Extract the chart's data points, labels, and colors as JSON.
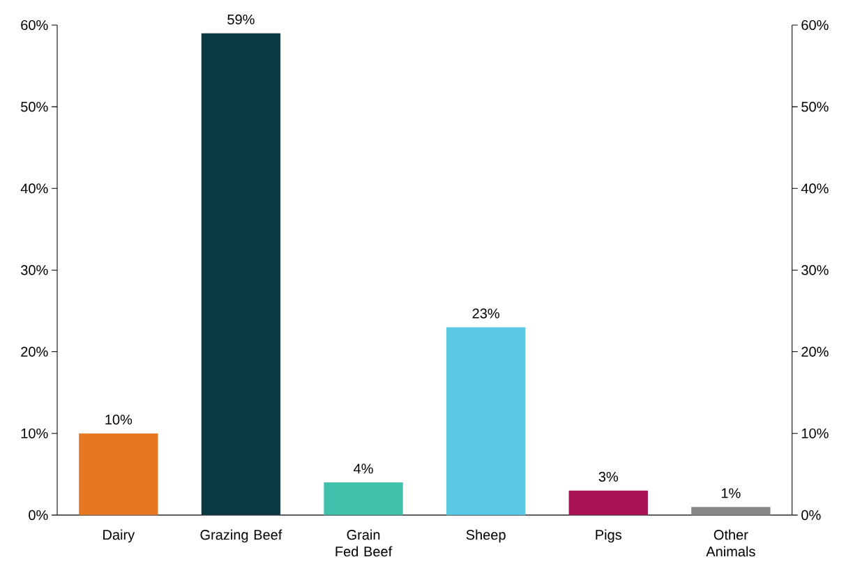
{
  "chart_data": {
    "type": "bar",
    "categories": [
      "Dairy",
      "Grazing Beef",
      "Grain Fed Beef",
      "Sheep",
      "Pigs",
      "Other Animals"
    ],
    "values": [
      10,
      59,
      4,
      23,
      3,
      1
    ],
    "colors": [
      "#e87722",
      "#0b3a42",
      "#40c1ac",
      "#5bc8e4",
      "#a81252",
      "#878787"
    ],
    "value_labels": [
      "10%",
      "59%",
      "4%",
      "23%",
      "3%",
      "1%"
    ],
    "ylim": [
      0,
      60
    ],
    "yticks": [
      {
        "value": 0,
        "label": "0%"
      },
      {
        "value": 10,
        "label": "10%"
      },
      {
        "value": 20,
        "label": "20%"
      },
      {
        "value": 30,
        "label": "30%"
      },
      {
        "value": 40,
        "label": "40%"
      },
      {
        "value": 50,
        "label": "50%"
      },
      {
        "value": 60,
        "label": "60%"
      }
    ],
    "y2lim": [
      0,
      60
    ],
    "y2ticks": [
      {
        "value": 0,
        "label": "0%"
      },
      {
        "value": 10,
        "label": "10%"
      },
      {
        "value": 20,
        "label": "20%"
      },
      {
        "value": 30,
        "label": "30%"
      },
      {
        "value": 40,
        "label": "40%"
      },
      {
        "value": 50,
        "label": "50%"
      },
      {
        "value": 60,
        "label": "60%"
      }
    ]
  }
}
